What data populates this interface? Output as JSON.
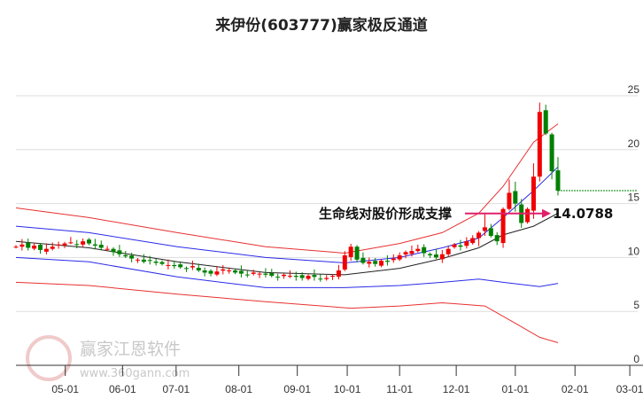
{
  "title": "来伊份(603777)赢家极反通道",
  "watermark": {
    "brand": "赢家江恩软件",
    "url": "www.360gann.com",
    "seal": "江赢恩家"
  },
  "chart_data": {
    "type": "candlestick",
    "title": "来伊份(603777)赢家极反通道",
    "ylim": [
      0,
      25
    ],
    "yticks": [
      0,
      5,
      10,
      15,
      20,
      25
    ],
    "xticks": [
      {
        "label": "05-01",
        "index": 8.1
      },
      {
        "label": "06-01",
        "index": 17.5
      },
      {
        "label": "07-01",
        "index": 26.3
      },
      {
        "label": "08-01",
        "index": 36.6
      },
      {
        "label": "09-01",
        "index": 46.2
      },
      {
        "label": "10-01",
        "index": 54.4
      },
      {
        "label": "11-01",
        "index": 63
      },
      {
        "label": "12-01",
        "index": 72.3
      },
      {
        "label": "01-01",
        "index": 82
      },
      {
        "label": "02-01",
        "index": 91.8
      },
      {
        "label": "03-01",
        "index": 100.8
      }
    ],
    "xlim": [
      0,
      102
    ],
    "closes": [
      11.0,
      11.2,
      10.9,
      11.1,
      10.7,
      10.8,
      11.0,
      11.2,
      11.3,
      11.4,
      11.2,
      11.5,
      11.3,
      11.1,
      10.9,
      10.8,
      10.5,
      10.3,
      10.1,
      9.9,
      9.8,
      9.6,
      9.7,
      9.5,
      9.4,
      9.3,
      9.2,
      9.1,
      9.0,
      9.2,
      8.8,
      8.6,
      8.5,
      8.7,
      8.9,
      8.8,
      8.6,
      8.5,
      8.4,
      8.6,
      8.5,
      8.4,
      8.3,
      8.2,
      8.4,
      8.3,
      8.2,
      8.1,
      8.3,
      8.2,
      8.0,
      8.1,
      8.3,
      8.8,
      10.2,
      11.0,
      9.8,
      9.5,
      9.6,
      9.4,
      9.7,
      9.6,
      9.9,
      10.2,
      10.5,
      10.6,
      10.8,
      10.4,
      10.2,
      10.0,
      10.3,
      10.8,
      11.2,
      11.0,
      11.5,
      11.8,
      12.3,
      12.8,
      12.0,
      11.5,
      14.5,
      16.0,
      15.0,
      13.2,
      14.5,
      17.5,
      23.5,
      21.5,
      18.0,
      16.2
    ],
    "bands": [
      {
        "name": "upper-red",
        "color": "#e83030",
        "points": [
          [
            0,
            14.6
          ],
          [
            12,
            13.7
          ],
          [
            26.5,
            12.3
          ],
          [
            41,
            11.0
          ],
          [
            54,
            10.4
          ],
          [
            63,
            11.3
          ],
          [
            70,
            12.3
          ],
          [
            76,
            14.1
          ],
          [
            80,
            16.6
          ],
          [
            85,
            20.7
          ],
          [
            89,
            22.4
          ]
        ]
      },
      {
        "name": "upper-blue",
        "color": "#2a2ae8",
        "points": [
          [
            0,
            12.9
          ],
          [
            12,
            12.3
          ],
          [
            26.5,
            11.0
          ],
          [
            41,
            10.0
          ],
          [
            54,
            9.5
          ],
          [
            63,
            10.0
          ],
          [
            70,
            10.9
          ],
          [
            76,
            11.8
          ],
          [
            80,
            13.7
          ],
          [
            85,
            16.2
          ],
          [
            89,
            18.4
          ]
        ]
      },
      {
        "name": "lifeline-black",
        "color": "#222222",
        "points": [
          [
            0,
            11.5
          ],
          [
            12,
            10.9
          ],
          [
            26.5,
            9.6
          ],
          [
            41,
            8.6
          ],
          [
            54,
            8.4
          ],
          [
            63,
            9.0
          ],
          [
            70,
            9.9
          ],
          [
            76,
            10.9
          ],
          [
            80,
            12.1
          ],
          [
            85,
            12.9
          ],
          [
            89,
            14.1
          ]
        ]
      },
      {
        "name": "lower-blue",
        "color": "#2a2ae8",
        "points": [
          [
            0,
            10.0
          ],
          [
            12,
            9.6
          ],
          [
            26.5,
            8.2
          ],
          [
            41,
            7.2
          ],
          [
            54,
            7.2
          ],
          [
            63,
            7.4
          ],
          [
            70,
            7.7
          ],
          [
            76,
            8.0
          ],
          [
            80,
            7.7
          ],
          [
            86,
            7.3
          ],
          [
            89,
            7.6
          ]
        ]
      },
      {
        "name": "lower-red",
        "color": "#e83030",
        "points": [
          [
            0,
            7.7
          ],
          [
            12,
            7.4
          ],
          [
            26.5,
            6.6
          ],
          [
            41,
            5.9
          ],
          [
            55,
            5.3
          ],
          [
            63,
            5.5
          ],
          [
            70,
            5.8
          ],
          [
            77,
            5.5
          ],
          [
            82,
            3.9
          ],
          [
            86,
            2.6
          ],
          [
            89,
            2.1
          ]
        ]
      }
    ],
    "last_price_line": 16.2,
    "annotation": {
      "text": "生命线对股价形成支撑",
      "value": "14.0788",
      "price": 14.0788
    },
    "colors": {
      "up": "#f00000",
      "down": "#008000",
      "arrow": "#e0206a",
      "grid": "#dddddd"
    }
  }
}
